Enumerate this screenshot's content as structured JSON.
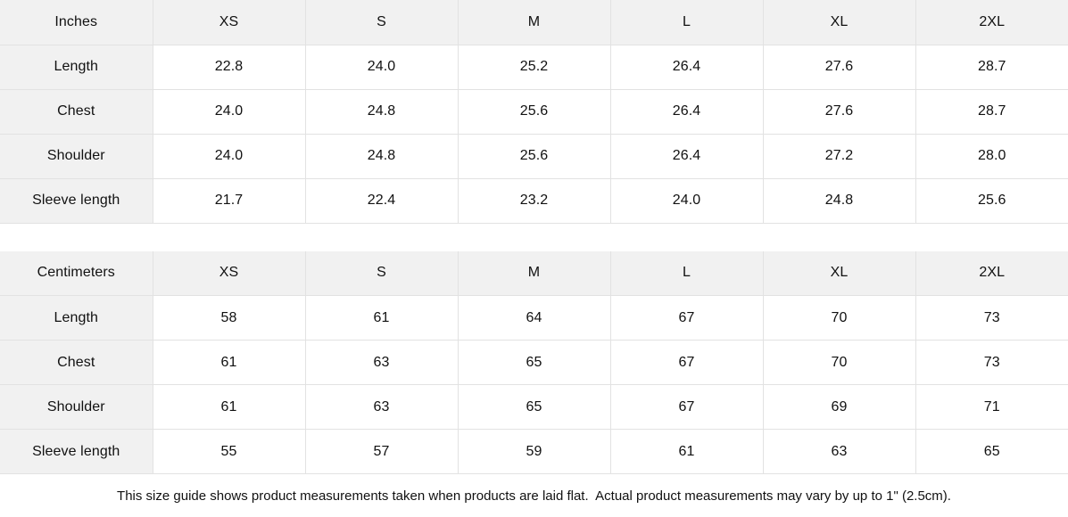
{
  "sizes": [
    "XS",
    "S",
    "M",
    "L",
    "XL",
    "2XL"
  ],
  "tables": [
    {
      "unit_label": "Inches",
      "rows": [
        {
          "label": "Length",
          "values": [
            "22.8",
            "24.0",
            "25.2",
            "26.4",
            "27.6",
            "28.7"
          ]
        },
        {
          "label": "Chest",
          "values": [
            "24.0",
            "24.8",
            "25.6",
            "26.4",
            "27.6",
            "28.7"
          ]
        },
        {
          "label": "Shoulder",
          "values": [
            "24.0",
            "24.8",
            "25.6",
            "26.4",
            "27.2",
            "28.0"
          ]
        },
        {
          "label": "Sleeve length",
          "values": [
            "21.7",
            "22.4",
            "23.2",
            "24.0",
            "24.8",
            "25.6"
          ]
        }
      ]
    },
    {
      "unit_label": "Centimeters",
      "rows": [
        {
          "label": "Length",
          "values": [
            "58",
            "61",
            "64",
            "67",
            "70",
            "73"
          ]
        },
        {
          "label": "Chest",
          "values": [
            "61",
            "63",
            "65",
            "67",
            "70",
            "73"
          ]
        },
        {
          "label": "Shoulder",
          "values": [
            "61",
            "63",
            "65",
            "67",
            "69",
            "71"
          ]
        },
        {
          "label": "Sleeve length",
          "values": [
            "55",
            "57",
            "59",
            "61",
            "63",
            "65"
          ]
        }
      ]
    }
  ],
  "footer": {
    "note": "This size guide shows product measurements taken when products are laid flat.  Actual product measurements may vary by up to 1\" (2.5cm)."
  },
  "colors": {
    "header_bg": "#f1f1f1",
    "border": "#e2e2e2",
    "text": "#111111",
    "cell_bg": "#ffffff"
  }
}
